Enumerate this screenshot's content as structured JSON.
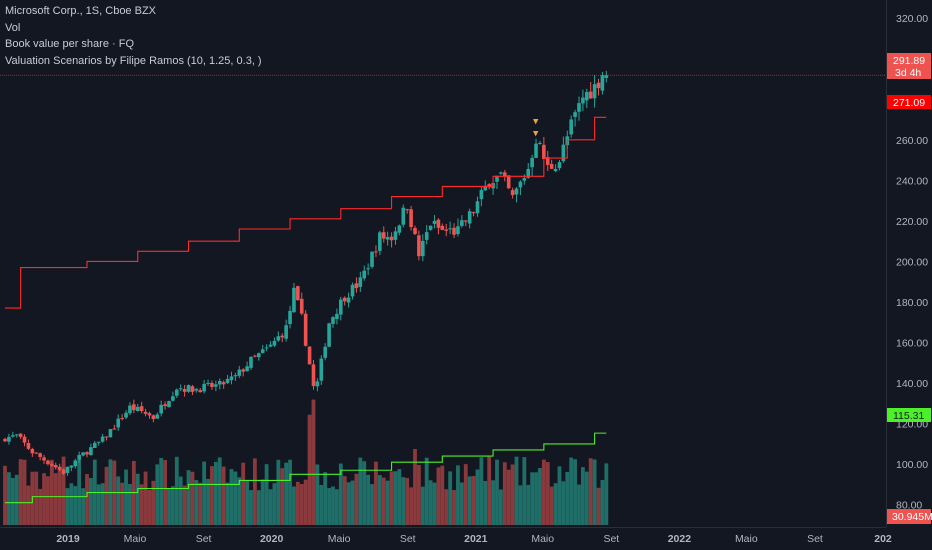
{
  "legend": {
    "line1": "Microsoft Corp., 1S, Cboe BZX",
    "line2": "Vol",
    "line3": "Book value per share · FQ",
    "line4": "Valuation Scenarios by Filipe Ramos (10, 1.25, 0.3, )"
  },
  "colors": {
    "background": "#131722",
    "up": "#26a69a",
    "down": "#ef5350",
    "vol_up": "#1f6e68",
    "vol_down": "#8a3a3c",
    "valuation": "#ff2a2a",
    "book_value": "#4cf028",
    "axis_text": "#b2b5be"
  },
  "price_tags": {
    "last_price": "291.89",
    "countdown": "3d 4h",
    "valuation": "271.09",
    "book_value": "115.31",
    "volume": "30.945M"
  },
  "markers": [
    "▼",
    "▼"
  ],
  "chart_data": {
    "type": "candlestick",
    "title": "Microsoft Corp., 1S, Cboe BZX",
    "y_axis": {
      "ticks": [
        "320.00",
        "300.00",
        "280.00",
        "260.00",
        "240.00",
        "220.00",
        "200.00",
        "180.00",
        "160.00",
        "140.00",
        "120.00",
        "100.00",
        "80.00"
      ],
      "range": [
        70,
        325
      ]
    },
    "x_axis": {
      "ticks": [
        "2019",
        "Maio",
        "Set",
        "2020",
        "Maio",
        "Set",
        "2021",
        "Maio",
        "Set",
        "2022",
        "Maio",
        "Set",
        "202"
      ],
      "tick_dates": [
        "2019-01-01",
        "2019-05-01",
        "2019-09-01",
        "2020-01-01",
        "2020-05-01",
        "2020-09-01",
        "2021-01-01",
        "2021-05-01",
        "2021-09-01",
        "2022-01-01",
        "2022-05-01",
        "2022-09-01",
        "2023-01-01"
      ],
      "range": [
        "2018-09-10",
        "2023-01-01"
      ]
    },
    "price_path": [
      [
        "2018-09-10",
        113
      ],
      [
        "2018-10-01",
        114
      ],
      [
        "2018-10-29",
        106
      ],
      [
        "2018-12-24",
        96
      ],
      [
        "2019-01-28",
        105
      ],
      [
        "2019-03-04",
        112
      ],
      [
        "2019-04-22",
        128
      ],
      [
        "2019-05-13",
        126
      ],
      [
        "2019-06-03",
        123
      ],
      [
        "2019-07-15",
        138
      ],
      [
        "2019-08-12",
        137
      ],
      [
        "2019-09-30",
        139
      ],
      [
        "2019-10-28",
        143
      ],
      [
        "2019-11-25",
        151
      ],
      [
        "2019-12-30",
        158
      ],
      [
        "2020-01-27",
        167
      ],
      [
        "2020-02-10",
        185
      ],
      [
        "2020-02-24",
        172
      ],
      [
        "2020-03-16",
        138
      ],
      [
        "2020-03-23",
        140
      ],
      [
        "2020-04-13",
        170
      ],
      [
        "2020-05-11",
        183
      ],
      [
        "2020-06-08",
        190
      ],
      [
        "2020-06-29",
        203
      ],
      [
        "2020-07-13",
        212
      ],
      [
        "2020-08-03",
        212
      ],
      [
        "2020-08-31",
        228
      ],
      [
        "2020-09-21",
        203
      ],
      [
        "2020-10-12",
        219
      ],
      [
        "2020-11-02",
        215
      ],
      [
        "2020-11-30",
        215
      ],
      [
        "2020-12-28",
        225
      ],
      [
        "2021-01-25",
        240
      ],
      [
        "2021-02-15",
        242
      ],
      [
        "2021-03-08",
        231
      ],
      [
        "2021-04-05",
        246
      ],
      [
        "2021-04-19",
        261
      ],
      [
        "2021-05-10",
        246
      ],
      [
        "2021-05-31",
        250
      ],
      [
        "2021-06-21",
        267
      ],
      [
        "2021-07-12",
        281
      ],
      [
        "2021-08-02",
        286
      ],
      [
        "2021-08-23",
        296
      ]
    ],
    "valuation_steps": [
      [
        "2018-09-10",
        177
      ],
      [
        "2018-10-08",
        197
      ],
      [
        "2019-02-04",
        200
      ],
      [
        "2019-05-06",
        205
      ],
      [
        "2019-08-05",
        210
      ],
      [
        "2019-11-04",
        216
      ],
      [
        "2020-02-03",
        221
      ],
      [
        "2020-05-04",
        226
      ],
      [
        "2020-08-03",
        232
      ],
      [
        "2020-11-02",
        237
      ],
      [
        "2021-02-01",
        242
      ],
      [
        "2021-05-03",
        251
      ],
      [
        "2021-06-14",
        260
      ],
      [
        "2021-08-02",
        271.09
      ]
    ],
    "book_value_steps": [
      [
        "2018-09-10",
        81
      ],
      [
        "2018-10-29",
        84
      ],
      [
        "2019-02-04",
        86
      ],
      [
        "2019-05-06",
        88
      ],
      [
        "2019-08-05",
        90
      ],
      [
        "2019-11-04",
        92
      ],
      [
        "2020-02-03",
        95
      ],
      [
        "2020-05-04",
        97
      ],
      [
        "2020-08-03",
        101
      ],
      [
        "2020-11-02",
        104
      ],
      [
        "2021-02-01",
        107
      ],
      [
        "2021-05-03",
        110
      ],
      [
        "2021-08-02",
        115.31
      ]
    ],
    "volume_spikes": [
      [
        "2018-12-24",
        1.8
      ],
      [
        "2020-03-09",
        2.9
      ],
      [
        "2020-03-16",
        3.3
      ],
      [
        "2020-09-14",
        2.0
      ],
      [
        "2021-01-25",
        1.8
      ],
      [
        "2021-04-26",
        1.5
      ]
    ],
    "markers": [
      [
        "2021-04-19",
        268
      ],
      [
        "2021-04-19",
        262
      ]
    ],
    "last_price": 291.89,
    "countdown_label": "3d 4h",
    "valuation_level": 271.09,
    "book_value_level": 115.31,
    "last_volume": "30.945M",
    "grid": false
  }
}
